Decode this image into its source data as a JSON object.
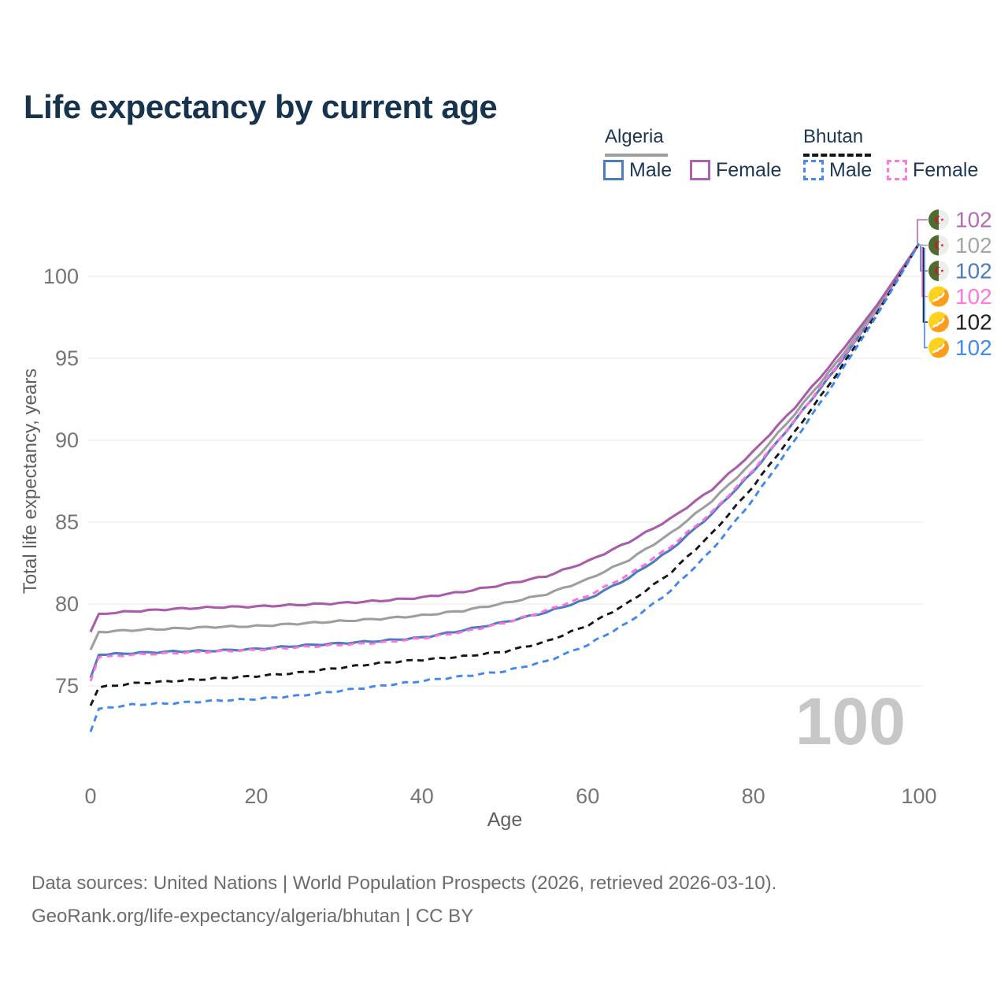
{
  "title": "Life expectancy by current age",
  "watermark": "100",
  "legend": {
    "groups": [
      {
        "country": "Algeria",
        "line_style": "solid",
        "underline_color": "#9e9e9e",
        "items": [
          {
            "label": "Male",
            "color": "#4d7dbf",
            "dashed": false
          },
          {
            "label": "Female",
            "color": "#ad63ad",
            "dashed": false
          }
        ]
      },
      {
        "country": "Bhutan",
        "line_style": "dashed",
        "underline_color": "#151515",
        "items": [
          {
            "label": "Male",
            "color": "#4489f4",
            "dashed": true
          },
          {
            "label": "Female",
            "color": "#ff78dd",
            "dashed": true
          }
        ]
      }
    ]
  },
  "end_labels": [
    {
      "series": "Algeria Female",
      "label": "102",
      "color": "#b46cb4",
      "flag": "algeria-flag-icon"
    },
    {
      "series": "Algeria Both sexes",
      "label": "102",
      "color": "#a6a6a6",
      "flag": "algeria-flag-icon"
    },
    {
      "series": "Algeria Male",
      "label": "102",
      "color": "#4d7dbf",
      "flag": "algeria-flag-icon"
    },
    {
      "series": "Bhutan Female",
      "label": "102",
      "color": "#ff78dd",
      "flag": "bhutan-flag-icon"
    },
    {
      "series": "Bhutan Both sexes",
      "label": "102",
      "color": "#222222",
      "flag": "bhutan-flag-icon"
    },
    {
      "series": "Bhutan Male",
      "label": "102",
      "color": "#4489f4",
      "flag": "bhutan-flag-icon"
    }
  ],
  "footer": {
    "line1": "Data sources: United Nations | World Population Prospects (2026, retrieved 2026-03-10).",
    "line2": "GeoRank.org/life-expectancy/algeria/bhutan | CC BY"
  },
  "chart_data": {
    "type": "line",
    "title": "Life expectancy by current age",
    "xlabel": "Age",
    "ylabel": "Total life expectancy, years",
    "xlim": [
      0,
      100
    ],
    "ylim": [
      71.5,
      103
    ],
    "x_ticks": [
      0,
      20,
      40,
      60,
      80,
      100
    ],
    "y_ticks": [
      75,
      80,
      85,
      90,
      95,
      100
    ],
    "grid": true,
    "legend_position": "top-right",
    "series": [
      {
        "name": "Algeria Female",
        "color": "#a95ca9",
        "dash": "solid",
        "points": [
          [
            0,
            78.3
          ],
          [
            1,
            79.4
          ],
          [
            5,
            79.55
          ],
          [
            10,
            79.7
          ],
          [
            15,
            79.8
          ],
          [
            20,
            79.85
          ],
          [
            25,
            79.95
          ],
          [
            30,
            80.05
          ],
          [
            35,
            80.2
          ],
          [
            40,
            80.4
          ],
          [
            45,
            80.75
          ],
          [
            50,
            81.2
          ],
          [
            55,
            81.7
          ],
          [
            60,
            82.6
          ],
          [
            65,
            83.8
          ],
          [
            70,
            85.2
          ],
          [
            75,
            87.0
          ],
          [
            80,
            89.3
          ],
          [
            85,
            92.0
          ],
          [
            90,
            95.0
          ],
          [
            95,
            98.3
          ],
          [
            100,
            102
          ]
        ]
      },
      {
        "name": "Algeria Both sexes",
        "color": "#9e9e9e",
        "dash": "solid",
        "points": [
          [
            0,
            77.2
          ],
          [
            1,
            78.3
          ],
          [
            5,
            78.4
          ],
          [
            10,
            78.5
          ],
          [
            15,
            78.6
          ],
          [
            20,
            78.65
          ],
          [
            25,
            78.8
          ],
          [
            30,
            78.95
          ],
          [
            35,
            79.1
          ],
          [
            40,
            79.3
          ],
          [
            45,
            79.6
          ],
          [
            50,
            80.05
          ],
          [
            55,
            80.6
          ],
          [
            60,
            81.5
          ],
          [
            65,
            82.7
          ],
          [
            70,
            84.3
          ],
          [
            75,
            86.3
          ],
          [
            80,
            88.7
          ],
          [
            85,
            91.6
          ],
          [
            90,
            94.7
          ],
          [
            95,
            98.1
          ],
          [
            100,
            102
          ]
        ]
      },
      {
        "name": "Algeria Male",
        "color": "#4d7dbf",
        "dash": "solid",
        "points": [
          [
            0,
            75.5
          ],
          [
            1,
            76.9
          ],
          [
            5,
            77.0
          ],
          [
            10,
            77.1
          ],
          [
            15,
            77.15
          ],
          [
            20,
            77.25
          ],
          [
            25,
            77.45
          ],
          [
            30,
            77.6
          ],
          [
            35,
            77.75
          ],
          [
            40,
            77.95
          ],
          [
            45,
            78.4
          ],
          [
            50,
            78.9
          ],
          [
            55,
            79.5
          ],
          [
            60,
            80.3
          ],
          [
            65,
            81.6
          ],
          [
            70,
            83.3
          ],
          [
            75,
            85.5
          ],
          [
            80,
            88.1
          ],
          [
            85,
            91.2
          ],
          [
            90,
            94.4
          ],
          [
            95,
            98.0
          ],
          [
            100,
            102
          ]
        ]
      },
      {
        "name": "Bhutan Female",
        "color": "#ff70dc",
        "dash": "dashed",
        "points": [
          [
            0,
            75.3
          ],
          [
            1,
            76.75
          ],
          [
            5,
            76.9
          ],
          [
            10,
            77.0
          ],
          [
            15,
            77.1
          ],
          [
            20,
            77.2
          ],
          [
            25,
            77.35
          ],
          [
            30,
            77.5
          ],
          [
            35,
            77.65
          ],
          [
            40,
            77.9
          ],
          [
            45,
            78.3
          ],
          [
            50,
            78.85
          ],
          [
            55,
            79.6
          ],
          [
            60,
            80.5
          ],
          [
            65,
            81.8
          ],
          [
            70,
            83.5
          ],
          [
            75,
            85.6
          ],
          [
            80,
            88.2
          ],
          [
            85,
            91.2
          ],
          [
            90,
            94.5
          ],
          [
            95,
            98.0
          ],
          [
            100,
            102
          ]
        ]
      },
      {
        "name": "Bhutan Both sexes",
        "color": "#161616",
        "dash": "dashed",
        "points": [
          [
            0,
            73.8
          ],
          [
            1,
            74.9
          ],
          [
            5,
            75.15
          ],
          [
            10,
            75.3
          ],
          [
            15,
            75.45
          ],
          [
            20,
            75.6
          ],
          [
            25,
            75.8
          ],
          [
            30,
            76.1
          ],
          [
            35,
            76.4
          ],
          [
            40,
            76.6
          ],
          [
            45,
            76.8
          ],
          [
            50,
            77.1
          ],
          [
            55,
            77.7
          ],
          [
            60,
            78.7
          ],
          [
            65,
            80.1
          ],
          [
            70,
            81.9
          ],
          [
            75,
            84.3
          ],
          [
            80,
            87.2
          ],
          [
            85,
            90.5
          ],
          [
            90,
            94.0
          ],
          [
            95,
            97.8
          ],
          [
            100,
            102
          ]
        ]
      },
      {
        "name": "Bhutan Male",
        "color": "#4187f0",
        "dash": "dashed",
        "points": [
          [
            0,
            72.2
          ],
          [
            1,
            73.6
          ],
          [
            5,
            73.85
          ],
          [
            10,
            73.95
          ],
          [
            15,
            74.1
          ],
          [
            20,
            74.2
          ],
          [
            25,
            74.4
          ],
          [
            30,
            74.7
          ],
          [
            35,
            75.0
          ],
          [
            40,
            75.3
          ],
          [
            45,
            75.6
          ],
          [
            50,
            75.9
          ],
          [
            55,
            76.5
          ],
          [
            60,
            77.5
          ],
          [
            65,
            78.9
          ],
          [
            70,
            80.8
          ],
          [
            75,
            83.3
          ],
          [
            80,
            86.4
          ],
          [
            85,
            90.0
          ],
          [
            90,
            93.7
          ],
          [
            95,
            97.7
          ],
          [
            100,
            102
          ]
        ]
      }
    ]
  }
}
